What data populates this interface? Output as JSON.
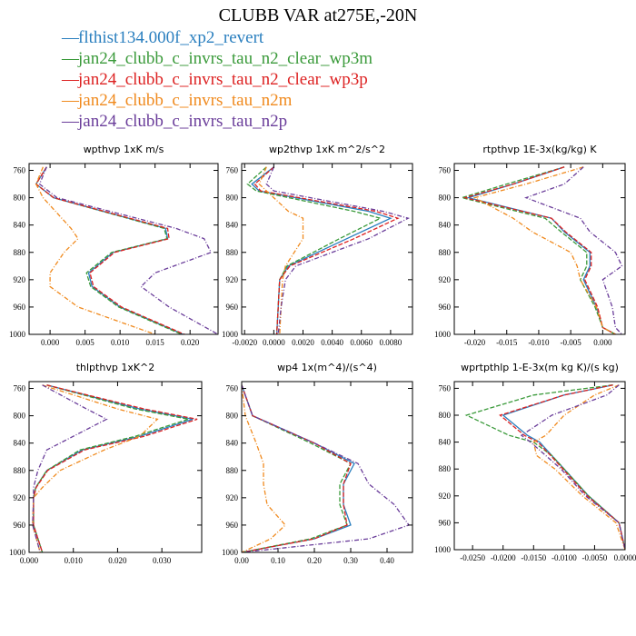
{
  "title": "CLUBB VAR at275E,-20N",
  "colors": {
    "blue": "#2a7fbf",
    "green": "#3a9a3a",
    "red": "#dd2222",
    "orange": "#f08a1e",
    "purple": "#6a3d9a"
  },
  "legend": [
    {
      "label": "flthist134.000f_xp2_revert",
      "color": "#2a7fbf"
    },
    {
      "label": "jan24_clubb_c_invrs_tau_n2_clear_wp3m",
      "color": "#3a9a3a"
    },
    {
      "label": "jan24_clubb_c_invrs_tau_n2_clear_wp3p",
      "color": "#dd2222"
    },
    {
      "label": "jan24_clubb_c_invrs_tau_n2m",
      "color": "#f08a1e"
    },
    {
      "label": "jan24_clubb_c_invrs_tau_n2p",
      "color": "#6a3d9a"
    }
  ],
  "chart_data": [
    {
      "type": "line",
      "title": "wpthvp  1xK m/s",
      "xlim": [
        -0.003,
        0.024
      ],
      "xticks": [
        0.0,
        0.005,
        0.01,
        0.015,
        0.02
      ],
      "xticklabels": [
        "0.000",
        "0.005",
        "0.010",
        "0.015",
        "0.020"
      ],
      "ylim": [
        750,
        1000
      ],
      "yticks": [
        760,
        800,
        840,
        880,
        920,
        960,
        1000
      ],
      "y": [
        755,
        780,
        800,
        845,
        860,
        880,
        910,
        930,
        960,
        1000
      ],
      "series": [
        {
          "name": "flthist134.000f_xp2_revert",
          "color": "#2a7fbf",
          "dash": "",
          "values": [
            -0.0005,
            -0.002,
            0.0005,
            0.0165,
            0.0168,
            0.009,
            0.0055,
            0.006,
            0.01,
            0.019
          ]
        },
        {
          "name": "jan24_clubb_c_invrs_tau_n2_clear_wp3m",
          "color": "#3a9a3a",
          "dash": "5,2",
          "values": [
            -0.0005,
            -0.002,
            0.0005,
            0.0163,
            0.0167,
            0.0088,
            0.0052,
            0.0058,
            0.0098,
            0.0188
          ]
        },
        {
          "name": "jan24_clubb_c_invrs_tau_n2_clear_wp3p",
          "color": "#dd2222",
          "dash": "5,2",
          "values": [
            -0.0005,
            -0.002,
            0.0005,
            0.0168,
            0.017,
            0.0092,
            0.0057,
            0.0062,
            0.0102,
            0.0192
          ]
        },
        {
          "name": "jan24_clubb_c_invrs_tau_n2m",
          "color": "#f08a1e",
          "dash": "5,2,1,2",
          "values": [
            -0.001,
            -0.002,
            -0.001,
            0.003,
            0.004,
            0.002,
            0.0,
            0.0,
            0.004,
            0.015
          ]
        },
        {
          "name": "jan24_clubb_c_invrs_tau_n2p",
          "color": "#6a3d9a",
          "dash": "5,2,1,2",
          "values": [
            -0.0005,
            -0.0015,
            0.001,
            0.018,
            0.022,
            0.023,
            0.015,
            0.013,
            0.017,
            0.024
          ]
        }
      ]
    },
    {
      "type": "line",
      "title": "wp2thvp  1xK m^2/s^2",
      "xlim": [
        -0.0022,
        0.0095
      ],
      "xticks": [
        -0.002,
        0.0,
        0.002,
        0.004,
        0.006,
        0.008
      ],
      "xticklabels": [
        "-0.0020",
        "0.0000",
        "0.0020",
        "0.0040",
        "0.0060",
        "0.0080"
      ],
      "ylim": [
        750,
        1000
      ],
      "yticks": [
        760,
        800,
        840,
        880,
        920,
        960,
        1000
      ],
      "y": [
        755,
        780,
        790,
        820,
        830,
        860,
        900,
        920,
        960,
        1000
      ],
      "series": [
        {
          "name": "flthist134.000f_xp2_revert",
          "color": "#2a7fbf",
          "dash": "",
          "values": [
            0.0,
            -0.0015,
            -0.001,
            0.0065,
            0.008,
            0.005,
            0.001,
            0.0004,
            0.0003,
            0.0002
          ]
        },
        {
          "name": "jan24_clubb_c_invrs_tau_n2_clear_wp3m",
          "color": "#3a9a3a",
          "dash": "5,2",
          "values": [
            -0.0005,
            -0.0018,
            -0.0012,
            0.0055,
            0.0073,
            0.0045,
            0.0009,
            0.0004,
            0.0003,
            0.0002
          ]
        },
        {
          "name": "jan24_clubb_c_invrs_tau_n2_clear_wp3p",
          "color": "#dd2222",
          "dash": "5,2",
          "values": [
            0.0,
            -0.0013,
            -0.0009,
            0.007,
            0.0085,
            0.0055,
            0.0011,
            0.0004,
            0.0003,
            0.0002
          ]
        },
        {
          "name": "jan24_clubb_c_invrs_tau_n2m",
          "color": "#f08a1e",
          "dash": "5,2,1,2",
          "values": [
            -0.0005,
            -0.001,
            -0.0005,
            0.001,
            0.002,
            0.002,
            0.0008,
            0.0006,
            0.0005,
            0.0004
          ]
        },
        {
          "name": "jan24_clubb_c_invrs_tau_n2p",
          "color": "#6a3d9a",
          "dash": "5,2,1,2",
          "values": [
            0.0,
            -0.0005,
            0.0,
            0.0075,
            0.0092,
            0.0065,
            0.0015,
            0.0008,
            0.0005,
            0.0003
          ]
        }
      ]
    },
    {
      "type": "line",
      "title": "rtpthvp  1E-3x(kg/kg) K",
      "xlim": [
        -0.0232,
        0.0035
      ],
      "xticks": [
        -0.02,
        -0.015,
        -0.01,
        -0.005,
        0.0
      ],
      "xticklabels": [
        "-0.020",
        "-0.015",
        "-0.010",
        "-0.005",
        "0.000"
      ],
      "ylim": [
        750,
        1000
      ],
      "yticks": [
        760,
        800,
        840,
        880,
        920,
        960,
        1000
      ],
      "y": [
        755,
        780,
        800,
        830,
        850,
        880,
        900,
        920,
        960,
        990,
        1000
      ],
      "series": [
        {
          "name": "flthist134.000f_xp2_revert",
          "color": "#2a7fbf",
          "dash": "",
          "values": [
            -0.006,
            -0.014,
            -0.021,
            -0.008,
            -0.006,
            -0.002,
            -0.002,
            -0.003,
            -0.001,
            0.0,
            0.002
          ]
        },
        {
          "name": "jan24_clubb_c_invrs_tau_n2_clear_wp3m",
          "color": "#3a9a3a",
          "dash": "5,2",
          "values": [
            -0.006,
            -0.015,
            -0.022,
            -0.009,
            -0.0065,
            -0.0025,
            -0.0025,
            -0.0035,
            -0.0012,
            0.0,
            0.002
          ]
        },
        {
          "name": "jan24_clubb_c_invrs_tau_n2_clear_wp3p",
          "color": "#dd2222",
          "dash": "5,2",
          "values": [
            -0.006,
            -0.014,
            -0.0215,
            -0.008,
            -0.0058,
            -0.0018,
            -0.0018,
            -0.0028,
            -0.0008,
            0.0,
            0.002
          ]
        },
        {
          "name": "jan24_clubb_c_invrs_tau_n2m",
          "color": "#f08a1e",
          "dash": "5,2,1,2",
          "values": [
            -0.003,
            -0.012,
            -0.02,
            -0.014,
            -0.011,
            -0.005,
            -0.004,
            -0.0035,
            -0.001,
            0.0,
            0.002
          ]
        },
        {
          "name": "jan24_clubb_c_invrs_tau_n2p",
          "color": "#6a3d9a",
          "dash": "5,2,1,2",
          "values": [
            -0.003,
            -0.006,
            -0.012,
            -0.0035,
            -0.002,
            0.002,
            0.003,
            0.0,
            0.0015,
            0.002,
            0.003
          ]
        }
      ]
    },
    {
      "type": "line",
      "title": "thlpthvp  1xK^2",
      "xlim": [
        0.0,
        0.039
      ],
      "xticks": [
        0.0,
        0.01,
        0.02,
        0.03
      ],
      "xticklabels": [
        "0.000",
        "0.010",
        "0.020",
        "0.030"
      ],
      "ylim": [
        750,
        1000
      ],
      "yticks": [
        760,
        800,
        840,
        880,
        920,
        960,
        1000
      ],
      "y": [
        755,
        790,
        805,
        830,
        850,
        880,
        905,
        920,
        960,
        1000
      ],
      "series": [
        {
          "name": "flthist134.000f_xp2_revert",
          "color": "#2a7fbf",
          "dash": "",
          "values": [
            0.004,
            0.025,
            0.037,
            0.025,
            0.012,
            0.004,
            0.0015,
            0.001,
            0.001,
            0.003
          ]
        },
        {
          "name": "jan24_clubb_c_invrs_tau_n2_clear_wp3m",
          "color": "#3a9a3a",
          "dash": "5,2",
          "values": [
            0.004,
            0.024,
            0.036,
            0.024,
            0.0115,
            0.004,
            0.0015,
            0.001,
            0.001,
            0.003
          ]
        },
        {
          "name": "jan24_clubb_c_invrs_tau_n2_clear_wp3p",
          "color": "#dd2222",
          "dash": "5,2",
          "values": [
            0.004,
            0.026,
            0.038,
            0.026,
            0.0125,
            0.0042,
            0.0016,
            0.001,
            0.001,
            0.003
          ]
        },
        {
          "name": "jan24_clubb_c_invrs_tau_n2m",
          "color": "#f08a1e",
          "dash": "5,2,1,2",
          "values": [
            0.003,
            0.02,
            0.029,
            0.025,
            0.017,
            0.007,
            0.003,
            0.001,
            0.0008,
            0.0025
          ]
        },
        {
          "name": "jan24_clubb_c_invrs_tau_n2p",
          "color": "#6a3d9a",
          "dash": "5,2,1,2",
          "values": [
            0.003,
            0.013,
            0.0175,
            0.01,
            0.004,
            0.002,
            0.001,
            0.001,
            0.0008,
            0.0025
          ]
        }
      ]
    },
    {
      "type": "line",
      "title": "wp4  1x(m^4)/(s^4)",
      "xlim": [
        0.0,
        0.47
      ],
      "xticks": [
        0.0,
        0.1,
        0.2,
        0.3,
        0.4
      ],
      "xticklabels": [
        "0.00",
        "0.10",
        "0.20",
        "0.30",
        "0.40"
      ],
      "ylim": [
        750,
        1000
      ],
      "yticks": [
        760,
        800,
        840,
        880,
        920,
        960,
        1000
      ],
      "y": [
        755,
        800,
        840,
        870,
        900,
        930,
        960,
        980,
        1000
      ],
      "series": [
        {
          "name": "flthist134.000f_xp2_revert",
          "color": "#2a7fbf",
          "dash": "",
          "values": [
            0.0,
            0.03,
            0.2,
            0.31,
            0.28,
            0.28,
            0.3,
            0.2,
            0.0
          ]
        },
        {
          "name": "jan24_clubb_c_invrs_tau_n2_clear_wp3m",
          "color": "#3a9a3a",
          "dash": "5,2",
          "values": [
            0.0,
            0.03,
            0.19,
            0.3,
            0.27,
            0.27,
            0.29,
            0.19,
            0.0
          ]
        },
        {
          "name": "jan24_clubb_c_invrs_tau_n2_clear_wp3p",
          "color": "#dd2222",
          "dash": "5,2",
          "values": [
            0.0,
            0.03,
            0.2,
            0.3,
            0.28,
            0.28,
            0.29,
            0.2,
            0.0
          ]
        },
        {
          "name": "jan24_clubb_c_invrs_tau_n2m",
          "color": "#f08a1e",
          "dash": "5,2,1,2",
          "values": [
            0.0,
            0.01,
            0.04,
            0.06,
            0.06,
            0.07,
            0.12,
            0.08,
            0.0
          ]
        },
        {
          "name": "jan24_clubb_c_invrs_tau_n2p",
          "color": "#6a3d9a",
          "dash": "5,2,1,2",
          "values": [
            0.0,
            0.03,
            0.2,
            0.32,
            0.35,
            0.42,
            0.46,
            0.35,
            0.0
          ]
        }
      ]
    },
    {
      "type": "line",
      "title": "wprtpthlp  1-E-3x(m kg K)/(s kg)",
      "xlim": [
        -0.028,
        0.0
      ],
      "xticks": [
        -0.025,
        -0.02,
        -0.015,
        -0.01,
        -0.005,
        0.0
      ],
      "xticklabels": [
        "-0.0250",
        "-0.0200",
        "-0.0150",
        "-0.0100",
        "-0.0050",
        "0.0000"
      ],
      "ylim": [
        750,
        1000
      ],
      "yticks": [
        760,
        800,
        840,
        880,
        920,
        960,
        1000
      ],
      "y": [
        755,
        770,
        800,
        830,
        840,
        860,
        880,
        920,
        960,
        1000
      ],
      "series": [
        {
          "name": "flthist134.000f_xp2_revert",
          "color": "#2a7fbf",
          "dash": "",
          "values": [
            -0.002,
            -0.01,
            -0.02,
            -0.016,
            -0.014,
            -0.012,
            -0.01,
            -0.006,
            -0.001,
            0.0
          ]
        },
        {
          "name": "jan24_clubb_c_invrs_tau_n2_clear_wp3m",
          "color": "#3a9a3a",
          "dash": "5,2",
          "values": [
            -0.002,
            -0.015,
            -0.026,
            -0.019,
            -0.015,
            -0.012,
            -0.01,
            -0.006,
            -0.001,
            0.0
          ]
        },
        {
          "name": "jan24_clubb_c_invrs_tau_n2_clear_wp3p",
          "color": "#dd2222",
          "dash": "5,2",
          "values": [
            -0.002,
            -0.01,
            -0.0205,
            -0.0165,
            -0.0143,
            -0.0122,
            -0.0102,
            -0.0062,
            -0.001,
            0.0
          ]
        },
        {
          "name": "jan24_clubb_c_invrs_tau_n2m",
          "color": "#f08a1e",
          "dash": "5,2,1,2",
          "values": [
            -0.001,
            -0.005,
            -0.01,
            -0.013,
            -0.015,
            -0.0145,
            -0.0115,
            -0.007,
            -0.0015,
            0.0
          ]
        },
        {
          "name": "jan24_clubb_c_invrs_tau_n2p",
          "color": "#6a3d9a",
          "dash": "5,2,1,2",
          "values": [
            -0.001,
            -0.003,
            -0.012,
            -0.017,
            -0.0155,
            -0.013,
            -0.0105,
            -0.0065,
            -0.001,
            0.0
          ]
        }
      ]
    }
  ]
}
